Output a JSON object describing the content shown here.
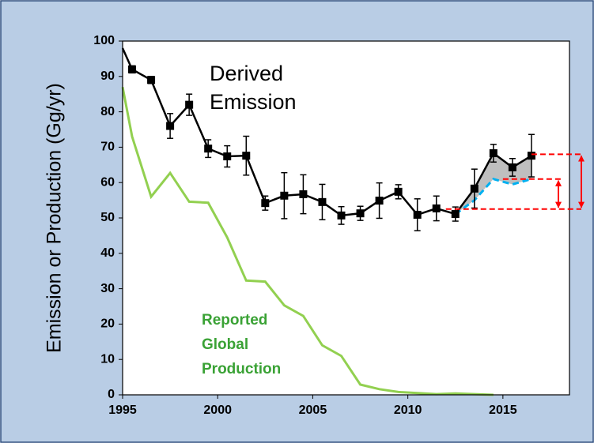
{
  "chart_data": {
    "type": "line",
    "y_label": "Emission or Production (Gg/yr)",
    "annotations": {
      "derived": [
        "Derived",
        "Emission"
      ],
      "reported": [
        "Reported",
        "Global",
        "Production"
      ]
    },
    "xlim": [
      1995,
      2018.5
    ],
    "xticks": [
      1995,
      2000,
      2005,
      2010,
      2015
    ],
    "ylim": [
      0,
      100
    ],
    "yticks": [
      0,
      10,
      20,
      30,
      40,
      50,
      60,
      70,
      80,
      90,
      100
    ],
    "series": [
      {
        "color": "#000000",
        "marker": "square",
        "x": [
          1995,
          1995.5,
          1996.5,
          1997.5,
          1998.5,
          1999.5,
          2000.5,
          2001.5,
          2002.5,
          2003.5,
          2004.5,
          2005.5,
          2006.5,
          2007.5,
          2008.5,
          2009.5,
          2010.5,
          2011.5,
          2012.5,
          2013.5,
          2014.5,
          2015.5,
          2016.5
        ],
        "values": [
          98,
          92,
          89,
          76,
          82,
          69.6,
          67.4,
          67.6,
          54.2,
          56.3,
          56.7,
          54.5,
          50.7,
          51.3,
          54.9,
          57.4,
          50.9,
          52.7,
          51.1,
          58.3,
          68.3,
          64.3,
          67.6
        ],
        "errors": [
          null,
          1,
          1,
          3.5,
          3,
          2.5,
          3,
          5.5,
          2,
          6.5,
          5.5,
          5,
          2.5,
          2,
          5,
          2,
          4.5,
          3.5,
          2,
          5.5,
          2.5,
          2.5,
          6
        ]
      },
      {
        "color": "#92d050",
        "x": [
          1995,
          1995.5,
          1996.5,
          1997.5,
          1998.5,
          1999.5,
          2000.5,
          2001.5,
          2002.5,
          2003.5,
          2004.5,
          2005.5,
          2006.5,
          2007.5,
          2008.5,
          2009.5,
          2010.5,
          2011.5,
          2012.5,
          2013.5,
          2014.5
        ],
        "values": [
          87,
          73,
          56,
          62.7,
          54.6,
          54.3,
          44.5,
          32.3,
          32,
          25.3,
          22.3,
          14,
          11,
          2.9,
          1.6,
          0.8,
          0.5,
          0.2,
          0.4,
          0.2,
          0
        ]
      },
      {
        "color": "#00b0f0",
        "dashed": true,
        "x": [
          2012.5,
          2013.5,
          2014.5,
          2015.5,
          2016.5
        ],
        "values": [
          51.1,
          55,
          61,
          59.5,
          61
        ]
      }
    ],
    "fill_color": "#bfbfbf",
    "levels": [
      68,
      61,
      52.5
    ],
    "level_color": "#ff0000"
  }
}
